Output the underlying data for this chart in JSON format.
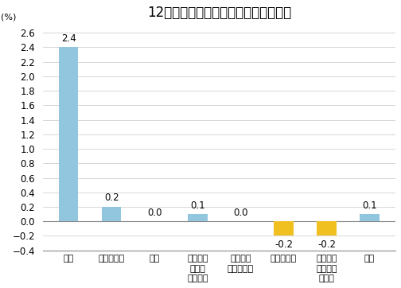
{
  "title": "12月份居民消费价格分类别环比涨跌幅",
  "ylabel": "(%)",
  "categories": [
    "食品",
    "烟酒及用品",
    "衣着",
    "家庭设备\n用品及\n维修服务",
    "医疗保健\n和个人用品",
    "交通和通信",
    "娱乐教育\n文化用品\n及服务",
    "居住"
  ],
  "values": [
    2.4,
    0.2,
    0.0,
    0.1,
    0.0,
    -0.2,
    -0.2,
    0.1
  ],
  "color_positive": "#92C5DE",
  "color_negative": "#F0C020",
  "ylim": [
    -0.4,
    2.7
  ],
  "yticks": [
    -0.4,
    -0.2,
    0.0,
    0.2,
    0.4,
    0.6,
    0.8,
    1.0,
    1.2,
    1.4,
    1.6,
    1.8,
    2.0,
    2.2,
    2.4,
    2.6
  ],
  "background_color": "#ffffff",
  "grid_color": "#d0d0d0",
  "title_fontsize": 12,
  "label_fontsize": 8,
  "tick_fontsize": 8.5,
  "bar_width": 0.45
}
